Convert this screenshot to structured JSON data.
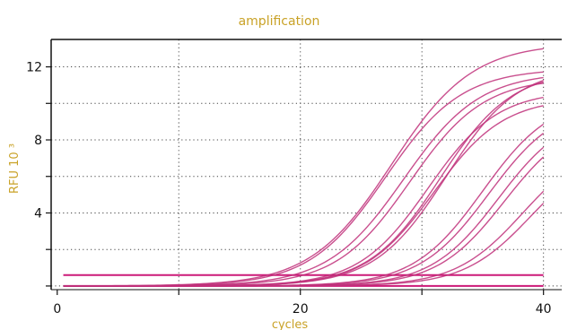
{
  "chart_data": {
    "type": "line",
    "title": "amplification",
    "xlabel": "cycles",
    "ylabel": "RFU 10 ³",
    "xlim": [
      -0.5,
      41.5
    ],
    "ylim": [
      -0.2,
      13.5
    ],
    "x_ticks": [
      0,
      20,
      40
    ],
    "x_tick_labels": [
      "0",
      "20",
      "40"
    ],
    "x_grid": [
      0,
      10,
      20,
      30,
      40
    ],
    "y_ticks": [
      4,
      8,
      12
    ],
    "y_tick_labels": [
      "4",
      "8",
      "12"
    ],
    "y_grid": [
      0,
      2,
      4,
      6,
      8,
      10,
      12
    ],
    "grid": true,
    "legend": "none",
    "colors": {
      "curve": "#c0307a",
      "baseline": "#cc1a78",
      "text": "#c9a227",
      "grid": "#444444",
      "axis": "#111111"
    },
    "baselines": [
      {
        "y": 0.6
      },
      {
        "y": 0.0
      }
    ],
    "series": [
      {
        "plateau": 13.3,
        "midpoint": 27.5,
        "slope": 0.3
      },
      {
        "plateau": 11.9,
        "midpoint": 27.0,
        "slope": 0.32
      },
      {
        "plateau": 11.7,
        "midpoint": 28.5,
        "slope": 0.32
      },
      {
        "plateau": 11.4,
        "midpoint": 29.0,
        "slope": 0.33
      },
      {
        "plateau": 11.8,
        "midpoint": 31.5,
        "slope": 0.34
      },
      {
        "plateau": 12.0,
        "midpoint": 32.0,
        "slope": 0.34
      },
      {
        "plateau": 10.7,
        "midpoint": 30.5,
        "slope": 0.35
      },
      {
        "plateau": 10.3,
        "midpoint": 31.0,
        "slope": 0.35
      },
      {
        "plateau": 10.4,
        "midpoint": 35.0,
        "slope": 0.35
      },
      {
        "plateau": 10.1,
        "midpoint": 35.5,
        "slope": 0.35
      },
      {
        "plateau": 9.6,
        "midpoint": 36.3,
        "slope": 0.36
      },
      {
        "plateau": 9.3,
        "midpoint": 36.8,
        "slope": 0.36
      },
      {
        "plateau": 8.0,
        "midpoint": 38.3,
        "slope": 0.36
      },
      {
        "plateau": 7.7,
        "midpoint": 39.0,
        "slope": 0.36
      }
    ]
  }
}
